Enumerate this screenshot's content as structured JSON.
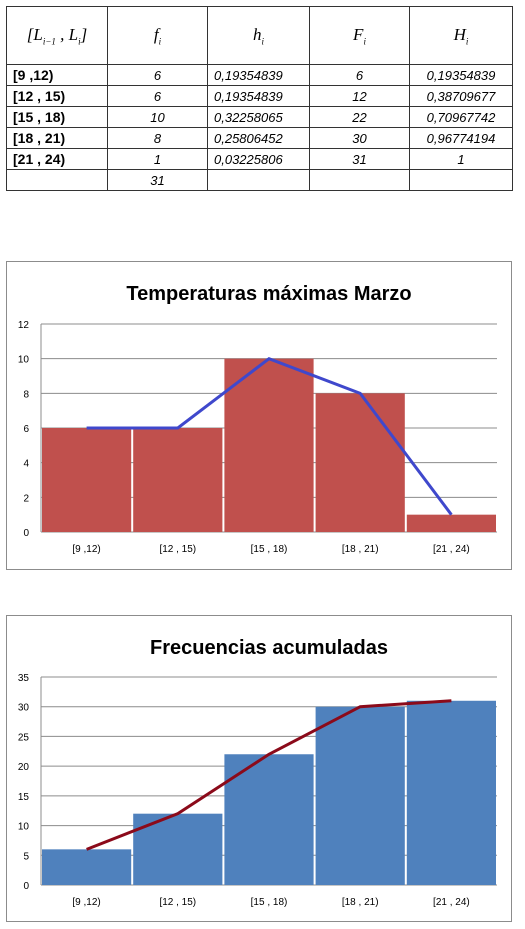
{
  "table": {
    "headers": [
      "[L_{i-1} , L_i]",
      "f_i",
      "h_i",
      "F_i",
      "H_i"
    ],
    "header_parts": {
      "interval_open": "[",
      "interval_L": "L",
      "interval_sub": "i−1",
      "interval_sep": " , ",
      "interval_L2": "L",
      "interval_sub2": "i",
      "interval_close": "]",
      "f": "f",
      "f_sub": "i",
      "h": "h",
      "h_sub": "i",
      "F": "F",
      "F_sub": "i",
      "H": "H",
      "H_sub": "i"
    },
    "rows": [
      {
        "interval": "[9 ,12)",
        "f": "6",
        "h": "0,19354839",
        "F": "6",
        "H": "0,19354839"
      },
      {
        "interval": "[12 , 15)",
        "f": "6",
        "h": "0,19354839",
        "F": "12",
        "H": "0,38709677"
      },
      {
        "interval": "[15 , 18)",
        "f": "10",
        "h": "0,32258065",
        "F": "22",
        "H": "0,70967742"
      },
      {
        "interval": "[18 , 21)",
        "f": "8",
        "h": "0,25806452",
        "F": "30",
        "H": "0,96774194"
      },
      {
        "interval": "[21 , 24)",
        "f": "1",
        "h": "0,03225806",
        "F": "31",
        "H": "1"
      }
    ],
    "total": {
      "interval": "",
      "f": "31",
      "h": "",
      "F": "",
      "H": ""
    }
  },
  "chart_data": [
    {
      "type": "bar",
      "title": "Temperaturas máximas Marzo",
      "categories": [
        "[9 ,12)",
        "[12 , 15)",
        "[15 , 18)",
        "[18 , 21)",
        "[21 , 24)"
      ],
      "values": [
        6,
        6,
        10,
        8,
        1
      ],
      "overlay_line": [
        6,
        6,
        10,
        8,
        1
      ],
      "ylim": [
        0,
        12
      ],
      "yticks": [
        0,
        2,
        4,
        6,
        8,
        10,
        12
      ],
      "grid": true,
      "legend": "none",
      "bar_color": "#c0504d",
      "line_color": "#3f48cc"
    },
    {
      "type": "bar",
      "title": "Frecuencias acumuladas",
      "categories": [
        "[9 ,12)",
        "[12 , 15)",
        "[15 , 18)",
        "[18 , 21)",
        "[21 , 24)"
      ],
      "values": [
        6,
        12,
        22,
        30,
        31
      ],
      "overlay_line": [
        6,
        12,
        22,
        30,
        31
      ],
      "ylim": [
        0,
        35
      ],
      "yticks": [
        0,
        5,
        10,
        15,
        20,
        25,
        30,
        35
      ],
      "grid": true,
      "legend": "none",
      "bar_color": "#4f81bd",
      "line_color": "#8b0a1a"
    }
  ]
}
